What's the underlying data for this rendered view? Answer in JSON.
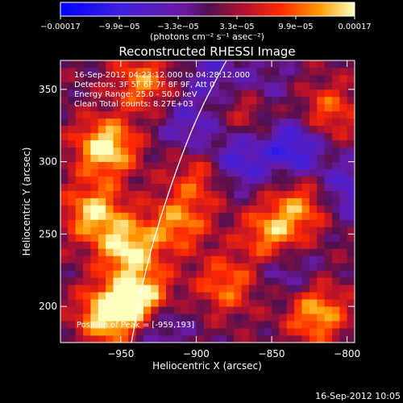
{
  "chart_data": {
    "type": "heatmap",
    "title": "Reconstructed RHESSI Image",
    "xlabel": "Heliocentric X (arcsec)",
    "ylabel": "Heliocentric Y (arcsec)",
    "xlim": [
      -990,
      -795
    ],
    "ylim": [
      175,
      370
    ],
    "x_ticks": [
      -950,
      -900,
      -850,
      -800
    ],
    "y_ticks": [
      200,
      250,
      300,
      350
    ],
    "x_tick_labels": [
      "−950",
      "−900",
      "−850",
      "−800"
    ],
    "y_tick_labels": [
      "200",
      "250",
      "300",
      "350"
    ],
    "colorbar": {
      "range": [
        -0.00017,
        0.00017
      ],
      "tick_labels": [
        "−0.00017",
        "−9.9e−05",
        "−3.3e−05",
        "3.3e−05",
        "9.9e−05",
        "0.00017"
      ],
      "units_label": "(photons cm⁻² s⁻¹ asec⁻²)"
    },
    "annotations": [
      "16-Sep-2012 04:23:12.000 to 04:28:12.000",
      "Detectors: 3F 5F 6F 7F 8F 9F, Att 0",
      "Energy Range: 25.0 - 50.0 keV",
      "Clean    Total counts: 8.27E+03"
    ],
    "peak_label": "Position of Peak = [-959,193]",
    "limb": [
      [
        -943,
        175
      ],
      [
        -933,
        230
      ],
      [
        -915,
        290
      ],
      [
        -898,
        335
      ],
      [
        -880,
        370
      ]
    ],
    "hot_regions": [
      {
        "x": -960,
        "y": 310,
        "v": 0.00017
      },
      {
        "x": -968,
        "y": 265,
        "v": 0.00014
      },
      {
        "x": -945,
        "y": 240,
        "v": 0.00015
      },
      {
        "x": -935,
        "y": 205,
        "v": 0.00017
      },
      {
        "x": -912,
        "y": 258,
        "v": 0.00011
      },
      {
        "x": -898,
        "y": 290,
        "v": 8e-05
      },
      {
        "x": -865,
        "y": 340,
        "v": 9e-05
      },
      {
        "x": -850,
        "y": 250,
        "v": 0.00012
      },
      {
        "x": -830,
        "y": 270,
        "v": 0.0001
      },
      {
        "x": -812,
        "y": 335,
        "v": 9e-05
      },
      {
        "x": -880,
        "y": 215,
        "v": 0.0001
      },
      {
        "x": -820,
        "y": 195,
        "v": 0.00013
      },
      {
        "x": -935,
        "y": 355,
        "v": 0.00011
      },
      {
        "x": -958,
        "y": 195,
        "v": 0.00017
      }
    ],
    "cold_regions": [
      {
        "x": -872,
        "y": 300,
        "v": -0.0001
      },
      {
        "x": -835,
        "y": 310,
        "v": -0.00012
      },
      {
        "x": -858,
        "y": 350,
        "v": -8e-05
      },
      {
        "x": -890,
        "y": 360,
        "v": -7e-05
      },
      {
        "x": -800,
        "y": 280,
        "v": -9e-05
      },
      {
        "x": -925,
        "y": 190,
        "v": -9e-05
      },
      {
        "x": -840,
        "y": 225,
        "v": -6e-05
      },
      {
        "x": -905,
        "y": 325,
        "v": -7e-05
      }
    ]
  },
  "footer_timestamp": "16-Sep-2012 10:05"
}
